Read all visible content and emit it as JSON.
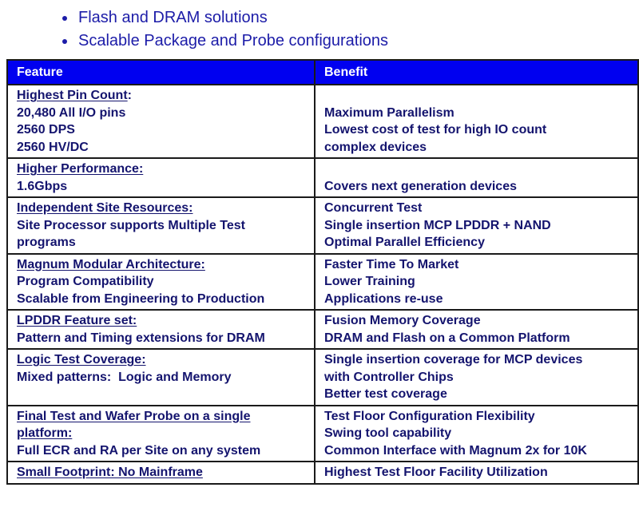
{
  "bullets": [
    "Flash and DRAM solutions",
    "Scalable Package and Probe configurations"
  ],
  "table": {
    "headers": {
      "feature": "Feature",
      "benefit": "Benefit"
    },
    "header_color": "#0000f0",
    "text_color": "#14146e",
    "rows": [
      {
        "feature_title": "Highest Pin Count",
        "feature_title_suffix": ":",
        "feature_lines": [
          "20,480 All I/O pins",
          "2560 DPS",
          "2560 HV/DC"
        ],
        "benefit_lines": [
          "",
          "Maximum Parallelism",
          "Lowest cost of test for high IO count",
          "complex devices"
        ]
      },
      {
        "feature_title": "Higher Performance:",
        "feature_title_suffix": "",
        "feature_lines": [
          "1.6Gbps"
        ],
        "benefit_lines": [
          "",
          "Covers next generation devices"
        ]
      },
      {
        "feature_title": "Independent Site Resources:",
        "feature_title_suffix": "",
        "feature_lines": [
          "Site Processor supports Multiple Test",
          "programs"
        ],
        "benefit_lines": [
          "Concurrent Test",
          "Single insertion MCP LPDDR + NAND",
          "Optimal Parallel Efficiency"
        ]
      },
      {
        "feature_title": "Magnum Modular Architecture:",
        "feature_title_suffix": "",
        "feature_lines": [
          "Program Compatibility",
          "Scalable from Engineering to Production"
        ],
        "benefit_lines": [
          "Faster Time To Market",
          "Lower Training",
          "Applications re-use"
        ]
      },
      {
        "feature_title": "LPDDR Feature set:",
        "feature_title_suffix": "",
        "feature_lines": [
          "Pattern and Timing extensions for DRAM"
        ],
        "benefit_lines": [
          "Fusion Memory Coverage",
          "DRAM and Flash on a Common Platform"
        ]
      },
      {
        "feature_title": "Logic Test Coverage:",
        "feature_title_suffix": "",
        "feature_lines": [
          "Mixed patterns:  Logic and Memory"
        ],
        "benefit_lines": [
          "Single insertion coverage for MCP devices",
          "with Controller Chips",
          "Better test coverage"
        ]
      },
      {
        "feature_title": "Final Test and Wafer Probe on a single platform:",
        "feature_title_suffix": "",
        "feature_lines": [
          "Full ECR and RA per Site on any system"
        ],
        "benefit_lines": [
          "Test Floor Configuration Flexibility",
          "Swing tool capability",
          "Common Interface with Magnum 2x for 10K"
        ]
      },
      {
        "feature_title": "Small Footprint: No Mainframe",
        "feature_title_suffix": "",
        "feature_lines": [],
        "benefit_lines": [
          "Highest Test Floor Facility Utilization"
        ]
      }
    ]
  }
}
